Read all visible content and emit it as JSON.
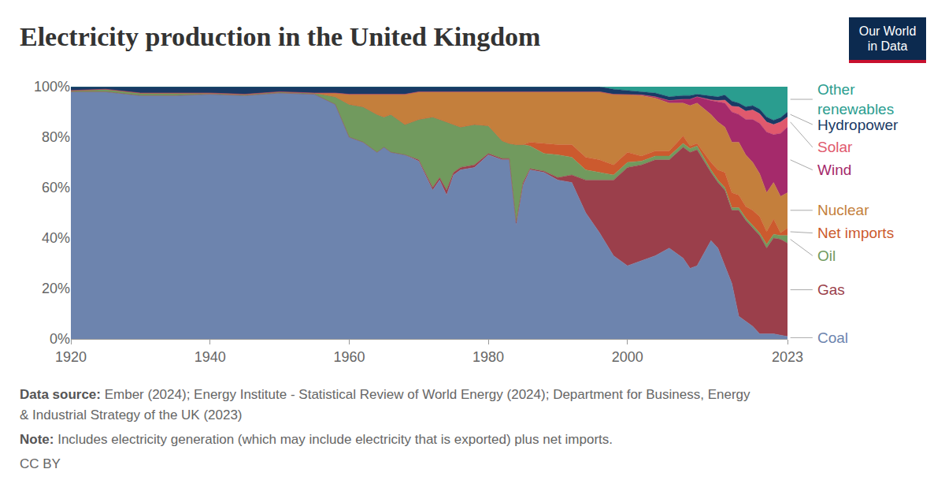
{
  "chart_data": {
    "type": "area",
    "title": "Electricity production in the United Kingdom",
    "logo": [
      "Our World",
      "in Data"
    ],
    "source": {
      "label": "Data source:",
      "lines": [
        "Ember (2024); Energy Institute - Statistical Review of World Energy (2024); Department for Business, Energy",
        "& Industrial Strategy of the UK (2023)"
      ]
    },
    "note": {
      "label": "Note:",
      "text": "Includes electricity generation (which may include electricity that is exported) plus net imports."
    },
    "license": "CC BY",
    "stacked": true,
    "grid": true,
    "x": [
      1920,
      1925,
      1930,
      1935,
      1940,
      1945,
      1950,
      1955,
      1958,
      1960,
      1962,
      1964,
      1965,
      1966,
      1968,
      1970,
      1972,
      1973,
      1974,
      1975,
      1976,
      1978,
      1980,
      1982,
      1983,
      1984,
      1985,
      1986,
      1988,
      1990,
      1992,
      1994,
      1996,
      1998,
      2000,
      2002,
      2004,
      2006,
      2008,
      2009,
      2010,
      2012,
      2013,
      2014,
      2015,
      2016,
      2017,
      2018,
      2019,
      2020,
      2021,
      2022,
      2023
    ],
    "xlim": [
      1920,
      2023
    ],
    "xticks": [
      1920,
      1940,
      1960,
      1980,
      2000,
      2023
    ],
    "ylim": [
      0,
      100
    ],
    "yticks": [
      {
        "value": 0,
        "label": "0%"
      },
      {
        "value": 20,
        "label": "20%"
      },
      {
        "value": 40,
        "label": "40%"
      },
      {
        "value": 60,
        "label": "60%"
      },
      {
        "value": 80,
        "label": "80%"
      },
      {
        "value": 100,
        "label": "100%"
      }
    ],
    "series": [
      {
        "name": "Coal",
        "color": "#6d84ae",
        "values": [
          98,
          98,
          96.5,
          96.5,
          97,
          96.5,
          97.5,
          97,
          93,
          80,
          78,
          74,
          76,
          74,
          73,
          70.5,
          59,
          63,
          57,
          65,
          67,
          68,
          73,
          71,
          71,
          45,
          61,
          67,
          66,
          63,
          62,
          50,
          42,
          33,
          29,
          31,
          33,
          36,
          32,
          28,
          29,
          39,
          36,
          29,
          22,
          9,
          7,
          5,
          2,
          2,
          2,
          1.5,
          1
        ]
      },
      {
        "name": "Gas",
        "color": "#9b3f4b",
        "values": [
          0,
          0,
          0,
          0,
          0,
          0,
          0,
          0,
          0,
          0,
          0,
          0,
          0,
          0,
          0,
          0.5,
          1,
          1,
          2,
          1,
          1,
          1,
          0.5,
          0.5,
          0.5,
          1,
          1,
          0.5,
          0.5,
          1,
          3,
          13,
          21,
          30,
          39,
          38,
          38,
          35,
          44,
          46,
          46,
          27,
          26,
          30,
          29,
          42,
          40,
          39,
          39,
          34,
          38,
          38,
          37
        ]
      },
      {
        "name": "Oil",
        "color": "#719a5e",
        "values": [
          0.5,
          1,
          1,
          1,
          0.5,
          0.5,
          0.5,
          0.5,
          3,
          13,
          14,
          15,
          12,
          15,
          12,
          16,
          28,
          23,
          27,
          19,
          16,
          16,
          11,
          7,
          6,
          31,
          15,
          9,
          7,
          9,
          7,
          4,
          3,
          2,
          2,
          1.5,
          1.5,
          1.5,
          1.5,
          1.5,
          1.5,
          1,
          1,
          1,
          1,
          1,
          1,
          1,
          1,
          1.5,
          1.5,
          1.5,
          3
        ]
      },
      {
        "name": "Net imports",
        "color": "#cc5a2e",
        "values": [
          0,
          0,
          0,
          0,
          0,
          0,
          0,
          0,
          0,
          0,
          0,
          0,
          0,
          0,
          0,
          0,
          0,
          0,
          0,
          0,
          0,
          0,
          0,
          0,
          0,
          0,
          0,
          1.5,
          4,
          4,
          5,
          5,
          5,
          4,
          4,
          2,
          2,
          2,
          3,
          1,
          1,
          3,
          4,
          6,
          6,
          5,
          4.5,
          6,
          6.5,
          5,
          6,
          1,
          3
        ]
      },
      {
        "name": "Nuclear",
        "color": "#c47f3c",
        "values": [
          0,
          0,
          0,
          0,
          0,
          0,
          0,
          0,
          1.5,
          4,
          5,
          8,
          9,
          8,
          12,
          11,
          10,
          11,
          12,
          13,
          14,
          13,
          13.5,
          19.5,
          20.5,
          21,
          21,
          20,
          20.5,
          21,
          21,
          26,
          27,
          28,
          23,
          24,
          21,
          19,
          13,
          16,
          16,
          19,
          19,
          18,
          20,
          21,
          20.5,
          19,
          17,
          15.5,
          14.5,
          14.5,
          14
        ]
      },
      {
        "name": "Wind",
        "color": "#a52a6b",
        "values": [
          0,
          0,
          0,
          0,
          0,
          0,
          0,
          0,
          0,
          0,
          0,
          0,
          0,
          0,
          0,
          0,
          0,
          0,
          0,
          0,
          0,
          0,
          0,
          0,
          0,
          0,
          0,
          0,
          0,
          0,
          0,
          0,
          0,
          0,
          0,
          0.3,
          0.5,
          1,
          1.5,
          2.5,
          2.5,
          5.5,
          8,
          9.5,
          12,
          11,
          14,
          17,
          20,
          24,
          19,
          25,
          26
        ]
      },
      {
        "name": "Solar",
        "color": "#e0596d",
        "values": [
          0,
          0,
          0,
          0,
          0,
          0,
          0,
          0,
          0,
          0,
          0,
          0,
          0,
          0,
          0,
          0,
          0,
          0,
          0,
          0,
          0,
          0,
          0,
          0,
          0,
          0,
          0,
          0,
          0,
          0,
          0,
          0,
          0,
          0,
          0,
          0,
          0,
          0,
          0,
          0,
          0,
          0.3,
          0.5,
          1.2,
          2.3,
          3,
          3.3,
          3.8,
          3.8,
          4,
          4,
          4.5,
          4
        ]
      },
      {
        "name": "Hydropower",
        "color": "#193a65",
        "values": [
          1.5,
          1,
          2.5,
          2.5,
          2.5,
          3,
          2,
          2.5,
          2.5,
          3,
          3,
          3,
          3,
          3,
          3,
          2,
          2,
          2,
          2,
          2,
          2,
          2,
          2,
          2,
          2,
          2,
          2,
          2,
          2,
          2,
          2,
          2,
          2,
          2,
          1.5,
          1.2,
          1.5,
          1.5,
          1.5,
          1.5,
          1,
          1.5,
          1.5,
          2,
          2,
          1.5,
          1.7,
          1.7,
          1.8,
          2,
          1.7,
          1.7,
          2
        ]
      },
      {
        "name": "Other renewables",
        "color": "#2a9d8f",
        "values": [
          0,
          0,
          0,
          0,
          0,
          0,
          0,
          0,
          0,
          0,
          0,
          0,
          0,
          0,
          0,
          0,
          0,
          0,
          0,
          0,
          0,
          0,
          0,
          0,
          0,
          0,
          0,
          0,
          0,
          0,
          0,
          0,
          0,
          1,
          1.5,
          2,
          2.5,
          4,
          3.5,
          3.5,
          3,
          3.7,
          4,
          3.3,
          5.7,
          6.5,
          8,
          7.5,
          8.9,
          12,
          13.3,
          12.3,
          10
        ]
      }
    ]
  }
}
